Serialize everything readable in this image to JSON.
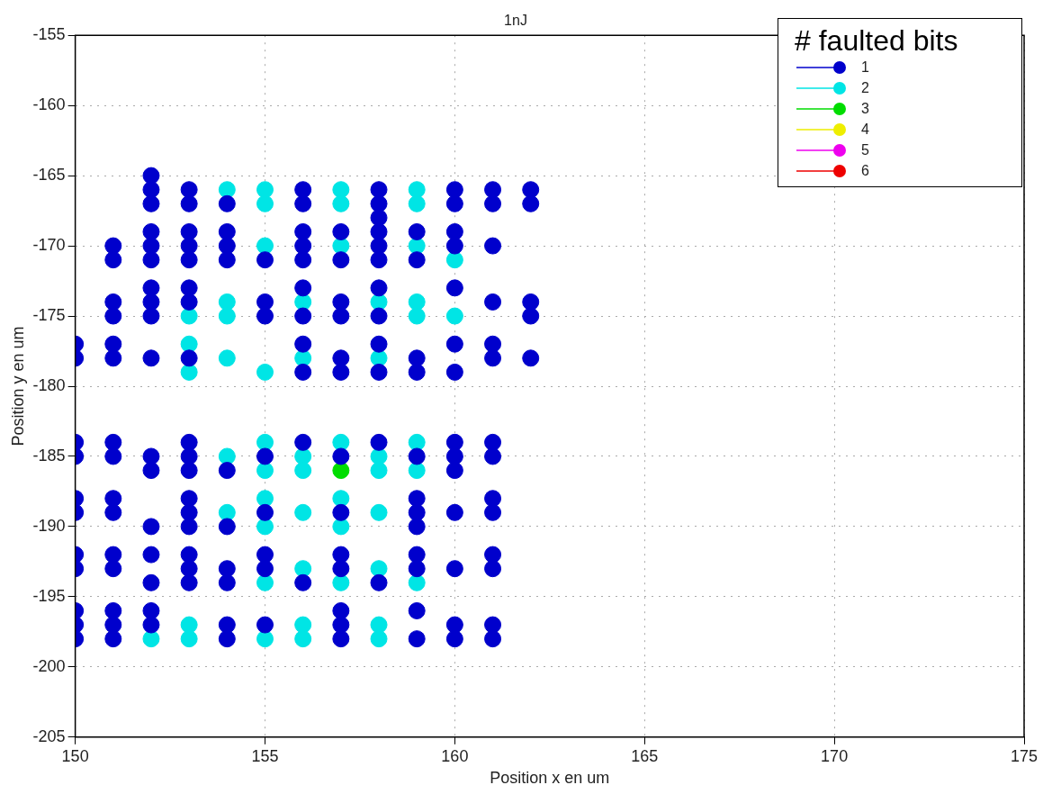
{
  "chart_data": {
    "type": "scatter",
    "title": "1nJ",
    "xlabel": "Position x en um",
    "ylabel": "Position y en um",
    "legend_title": "# faulted bits",
    "xlim": [
      150,
      175
    ],
    "xticks": [
      150,
      155,
      160,
      165,
      170,
      175
    ],
    "ylim": [
      -205,
      -155
    ],
    "yticks": [
      -205,
      -200,
      -195,
      -190,
      -185,
      -180,
      -175,
      -170,
      -165,
      -160,
      -155
    ],
    "grid": true,
    "legend": "top right",
    "marker": "circle",
    "series": [
      {
        "name": "1",
        "color": "#0000cc",
        "x": [
          150,
          150,
          151,
          151,
          151,
          151,
          151,
          151,
          152,
          152,
          152,
          152,
          152,
          152,
          152,
          152,
          152,
          152,
          153,
          153,
          153,
          153,
          153,
          153,
          153,
          153,
          154,
          154,
          154,
          154,
          155,
          155,
          155,
          156,
          156,
          156,
          156,
          156,
          156,
          156,
          156,
          156,
          157,
          157,
          157,
          157,
          157,
          157,
          158,
          158,
          158,
          158,
          158,
          158,
          158,
          158,
          158,
          158,
          159,
          159,
          159,
          159,
          160,
          160,
          160,
          160,
          160,
          160,
          160,
          161,
          161,
          161,
          161,
          161,
          161,
          162,
          162,
          162,
          162,
          162,
          150,
          150,
          150,
          150,
          150,
          150,
          150,
          150,
          150,
          151,
          151,
          151,
          151,
          151,
          151,
          151,
          151,
          151,
          152,
          152,
          152,
          152,
          152,
          152,
          152,
          153,
          153,
          153,
          153,
          153,
          153,
          153,
          153,
          153,
          154,
          154,
          154,
          154,
          154,
          154,
          155,
          155,
          155,
          155,
          155,
          156,
          156,
          157,
          157,
          157,
          157,
          157,
          157,
          157,
          158,
          158,
          159,
          159,
          159,
          159,
          159,
          159,
          159,
          159,
          160,
          160,
          160,
          160,
          160,
          160,
          160,
          161,
          161,
          161,
          161,
          161,
          161,
          161,
          161
        ],
        "values": [
          -177,
          -178,
          -170,
          -171,
          -174,
          -175,
          -177,
          -178,
          -165,
          -166,
          -167,
          -169,
          -170,
          -171,
          -173,
          -174,
          -175,
          -178,
          -166,
          -167,
          -169,
          -170,
          -171,
          -173,
          -174,
          -178,
          -167,
          -169,
          -170,
          -171,
          -171,
          -174,
          -175,
          -166,
          -167,
          -169,
          -170,
          -171,
          -173,
          -175,
          -177,
          -179,
          -169,
          -171,
          -174,
          -175,
          -178,
          -179,
          -166,
          -167,
          -168,
          -169,
          -170,
          -171,
          -173,
          -175,
          -177,
          -179,
          -169,
          -171,
          -178,
          -179,
          -166,
          -167,
          -169,
          -170,
          -173,
          -177,
          -179,
          -166,
          -167,
          -170,
          -174,
          -177,
          -178,
          -166,
          -167,
          -174,
          -175,
          -178,
          -184,
          -185,
          -188,
          -189,
          -192,
          -193,
          -196,
          -197,
          -198,
          -184,
          -185,
          -188,
          -189,
          -192,
          -193,
          -196,
          -197,
          -198,
          -185,
          -186,
          -190,
          -192,
          -194,
          -196,
          -197,
          -184,
          -185,
          -186,
          -188,
          -189,
          -190,
          -192,
          -193,
          -194,
          -186,
          -190,
          -193,
          -194,
          -197,
          -198,
          -185,
          -189,
          -192,
          -193,
          -197,
          -184,
          -194,
          -185,
          -189,
          -192,
          -193,
          -196,
          -197,
          -198,
          -184,
          -194,
          -185,
          -188,
          -189,
          -190,
          -192,
          -193,
          -196,
          -198,
          -184,
          -185,
          -186,
          -189,
          -193,
          -197,
          -198,
          -184,
          -185,
          -188,
          -189,
          -192,
          -193,
          -197,
          -198
        ]
      },
      {
        "name": "2",
        "color": "#00e5e5",
        "x": [
          153,
          153,
          153,
          154,
          154,
          154,
          154,
          155,
          155,
          155,
          155,
          156,
          156,
          157,
          157,
          157,
          158,
          158,
          159,
          159,
          159,
          159,
          159,
          160,
          160,
          152,
          153,
          153,
          154,
          154,
          155,
          155,
          155,
          155,
          155,
          155,
          156,
          156,
          156,
          156,
          156,
          156,
          157,
          157,
          157,
          157,
          158,
          158,
          158,
          158,
          158,
          158,
          159,
          159,
          159
        ],
        "values": [
          -175,
          -177,
          -179,
          -166,
          -174,
          -175,
          -178,
          -166,
          -167,
          -170,
          -179,
          -174,
          -178,
          -166,
          -167,
          -170,
          -174,
          -178,
          -166,
          -167,
          -170,
          -174,
          -175,
          -171,
          -175,
          -198,
          -197,
          -198,
          -185,
          -189,
          -184,
          -186,
          -188,
          -190,
          -194,
          -198,
          -185,
          -186,
          -189,
          -193,
          -197,
          -198,
          -184,
          -188,
          -190,
          -194,
          -185,
          -186,
          -189,
          -193,
          -197,
          -198,
          -184,
          -186,
          -194
        ]
      },
      {
        "name": "3",
        "color": "#00dd00",
        "x": [
          157
        ],
        "values": [
          -186
        ]
      },
      {
        "name": "4",
        "color": "#eeee00"
      },
      {
        "name": "5",
        "color": "#ee00ee"
      },
      {
        "name": "6",
        "color": "#ee0000"
      }
    ]
  }
}
